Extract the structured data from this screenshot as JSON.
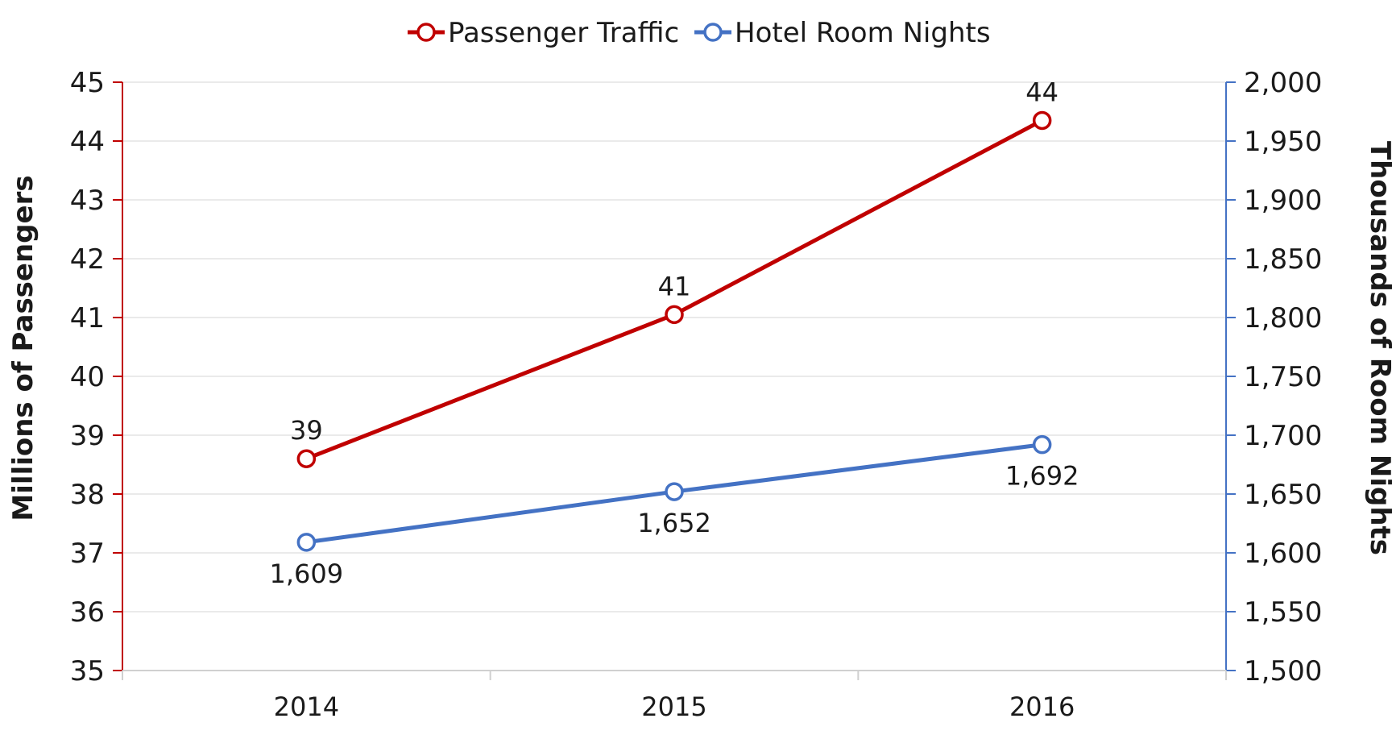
{
  "chart_data": {
    "type": "line",
    "categories": [
      "2014",
      "2015",
      "2016"
    ],
    "series": [
      {
        "name": "Passenger Traffic",
        "axis": "left",
        "color": "#C00000",
        "values": [
          38.6,
          41.05,
          44.35
        ],
        "data_labels": [
          "39",
          "41",
          "44"
        ],
        "label_position": "above"
      },
      {
        "name": "Hotel Room Nights",
        "axis": "right",
        "color": "#4472C4",
        "values": [
          1609,
          1652,
          1692
        ],
        "data_labels": [
          "1,609",
          "1,652",
          "1,692"
        ],
        "label_position": "below"
      }
    ],
    "y_left": {
      "label": "Millions of Passengers",
      "min": 35,
      "max": 45,
      "step": 1,
      "ticks": [
        "35",
        "36",
        "37",
        "38",
        "39",
        "40",
        "41",
        "42",
        "43",
        "44",
        "45"
      ],
      "color": "#C00000"
    },
    "y_right": {
      "label": "Thousands of Room Nights",
      "min": 1500,
      "max": 2000,
      "step": 50,
      "ticks": [
        "1,500",
        "1,550",
        "1,600",
        "1,650",
        "1,700",
        "1,750",
        "1,800",
        "1,850",
        "1,900",
        "1,950",
        "2,000"
      ],
      "color": "#4472C4"
    },
    "legend_position": "top",
    "grid": true
  }
}
